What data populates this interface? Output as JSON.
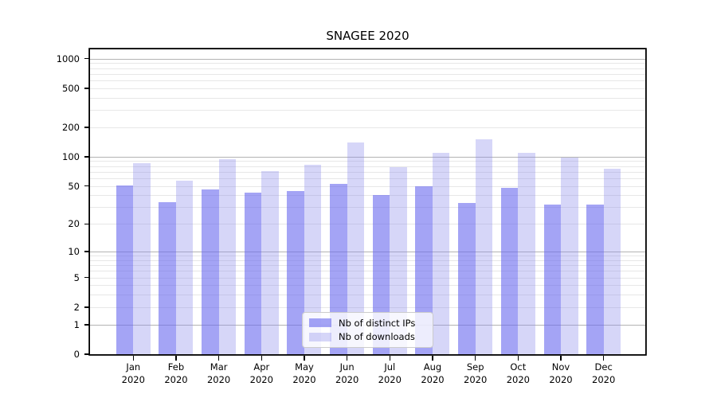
{
  "chart_data": {
    "type": "bar",
    "title": "SNAGEE 2020",
    "y_scale": "log10(value+1)",
    "y_ticks": [
      0,
      1,
      2,
      5,
      10,
      20,
      50,
      100,
      200,
      500,
      1000
    ],
    "ylim": [
      0,
      1250
    ],
    "grid": "horizontal",
    "legend_position": "lower center",
    "categories": [
      "Jan",
      "Feb",
      "Mar",
      "Apr",
      "May",
      "Jun",
      "Jul",
      "Aug",
      "Sep",
      "Oct",
      "Nov",
      "Dec"
    ],
    "year_label": "2020",
    "series": [
      {
        "key": "distinct-ips",
        "name": "Nb of distinct IPs",
        "color": "rgba(104,104,238,0.60)",
        "values": [
          51,
          34,
          46,
          43,
          44,
          53,
          40,
          50,
          33,
          48,
          32,
          32
        ]
      },
      {
        "key": "downloads",
        "name": "Nb of downloads",
        "color": "rgba(140,140,235,0.36)",
        "values": [
          86,
          57,
          95,
          71,
          82,
          140,
          78,
          110,
          150,
          110,
          97,
          75
        ]
      }
    ],
    "colors": {
      "axis": "#000000",
      "grid_major": "#b3b3b3",
      "grid_minor": "#e7e7e7",
      "text": "#000000",
      "legend_border": "#cccccc"
    }
  }
}
